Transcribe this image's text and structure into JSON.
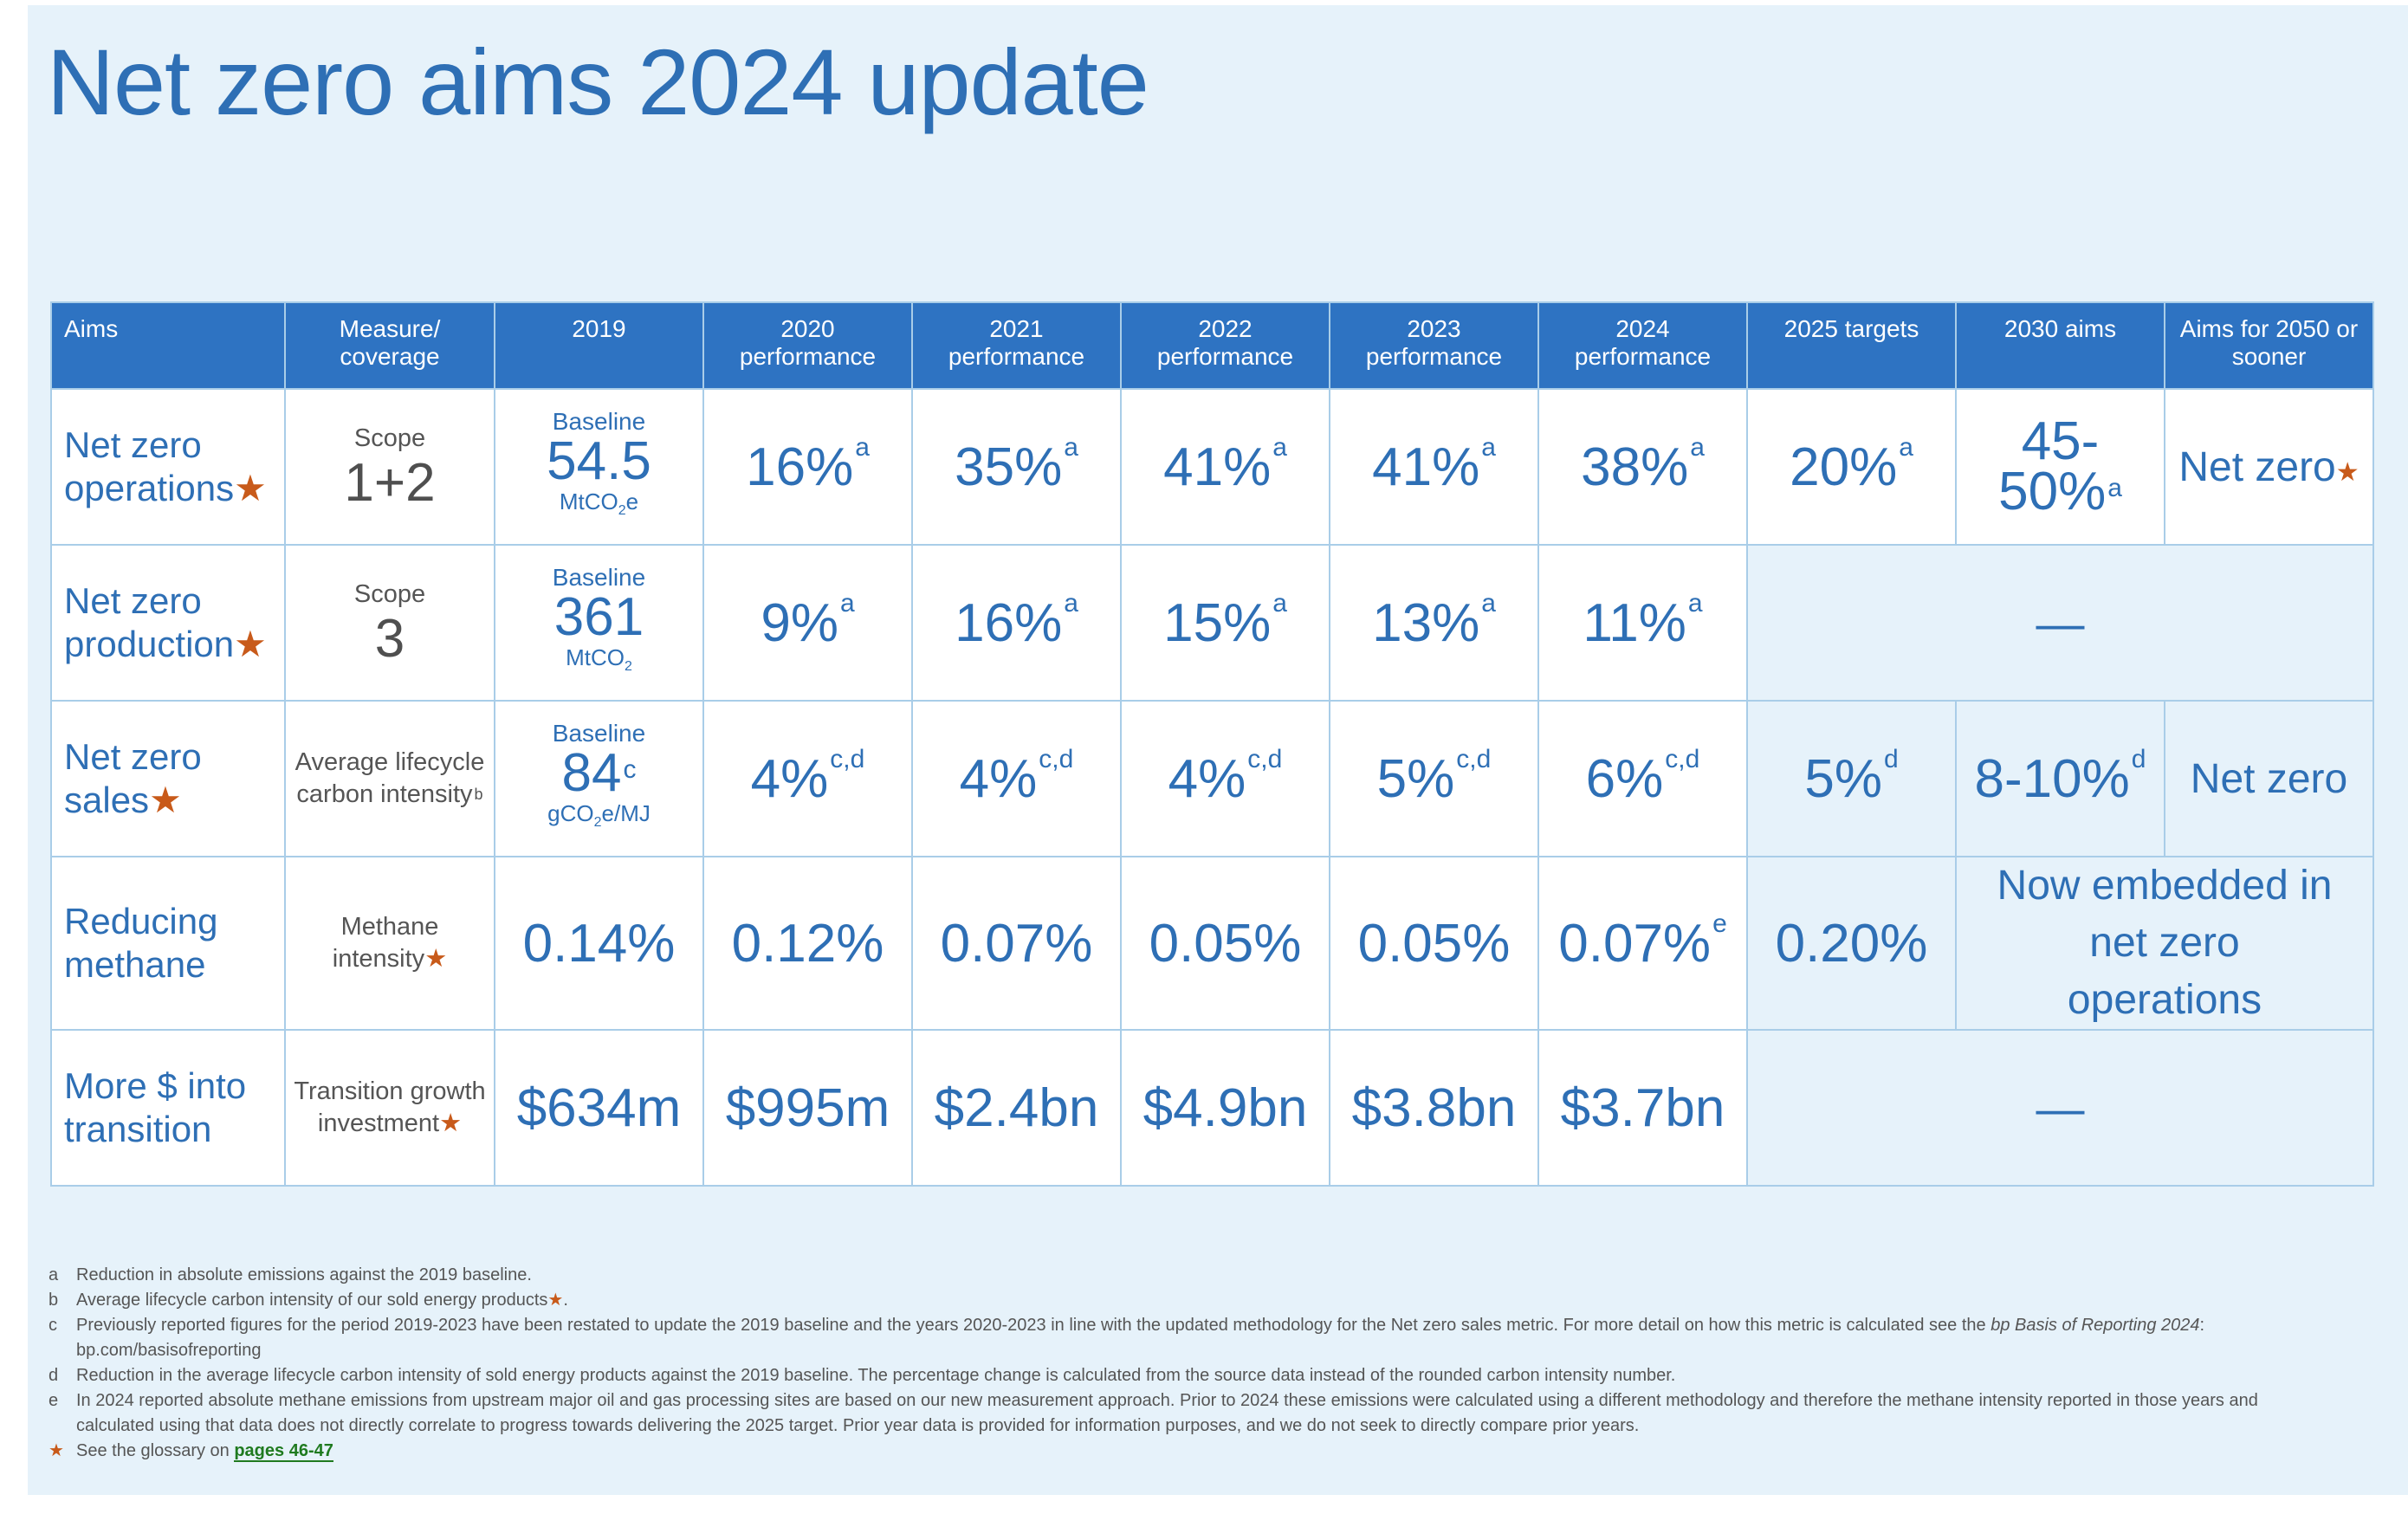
{
  "title": "Net zero aims 2024 update",
  "colors": {
    "accent": "#2e73c2",
    "text_blue": "#2e6fb5",
    "star": "#c85a1a",
    "panel": "#e6f2fa"
  },
  "headers": [
    "Aims",
    "Measure/ coverage",
    "2019",
    "2020 performance",
    "2021 performance",
    "2022 performance",
    "2023 performance",
    "2024 performance",
    "2025 targets",
    "2030 aims",
    "Aims for 2050 or sooner"
  ],
  "rows": {
    "operations": {
      "aim": "Net zero operations",
      "measure_label": "Scope",
      "measure_value": "1+2",
      "baseline_label": "Baseline",
      "baseline_value": "54.5",
      "baseline_unit_pre": "MtCO",
      "baseline_unit_sub": "2",
      "baseline_unit_post": "e",
      "v2020": "16%",
      "v2020_note": "a",
      "v2021": "35%",
      "v2021_note": "a",
      "v2022": "41%",
      "v2022_note": "a",
      "v2023": "41%",
      "v2023_note": "a",
      "v2024": "38%",
      "v2024_note": "a",
      "t2025": "20%",
      "t2025_note": "a",
      "a2030": "45- 50%",
      "a2030_note": "a",
      "a2050": "Net zero"
    },
    "production": {
      "aim": "Net zero production",
      "measure_label": "Scope",
      "measure_value": "3",
      "baseline_label": "Baseline",
      "baseline_value": "361",
      "baseline_unit_pre": "MtCO",
      "baseline_unit_sub": "2",
      "v2020": "9%",
      "v2020_note": "a",
      "v2021": "16%",
      "v2021_note": "a",
      "v2022": "15%",
      "v2022_note": "a",
      "v2023": "13%",
      "v2023_note": "a",
      "v2024": "11%",
      "v2024_note": "a",
      "future": "—"
    },
    "sales": {
      "aim": "Net zero sales",
      "measure": "Average lifecycle carbon intensity",
      "measure_note": "b",
      "baseline_label": "Baseline",
      "baseline_value": "84",
      "baseline_note": "c",
      "baseline_unit_pre": "gCO",
      "baseline_unit_sub": "2",
      "baseline_unit_post": "e/MJ",
      "v2020": "4%",
      "v2020_note": "c,d",
      "v2021": "4%",
      "v2021_note": "c,d",
      "v2022": "4%",
      "v2022_note": "c,d",
      "v2023": "5%",
      "v2023_note": "c,d",
      "v2024": "6%",
      "v2024_note": "c,d",
      "t2025": "5%",
      "t2025_note": "d",
      "a2030": "8-10%",
      "a2030_note": "d",
      "a2050": "Net zero"
    },
    "methane": {
      "aim": "Reducing methane",
      "measure": "Methane intensity",
      "v2019": "0.14%",
      "v2020": "0.12%",
      "v2021": "0.07%",
      "v2022": "0.05%",
      "v2023": "0.05%",
      "v2024": "0.07%",
      "v2024_note": "e",
      "t2025": "0.20%",
      "embedded": "Now embedded in net zero operations"
    },
    "investment": {
      "aim": "More $ into transition",
      "measure": "Transition growth investment",
      "v2019": "$634m",
      "v2020": "$995m",
      "v2021": "$2.4bn",
      "v2022": "$4.9bn",
      "v2023": "$3.8bn",
      "v2024": "$3.7bn",
      "future": "—"
    }
  },
  "star_glyph": "★",
  "footnotes": [
    {
      "key": "a",
      "text": "Reduction in absolute emissions against the 2019 baseline."
    },
    {
      "key": "b",
      "text": "Average lifecycle carbon intensity of our sold energy products"
    },
    {
      "key": "c",
      "text_pre": "Previously reported figures for the period 2019-2023 have been restated to update the 2019 baseline and the years 2020-2023 in line with the updated methodology for the Net zero sales metric. For more detail on how this metric is calculated see the ",
      "text_italic": "bp Basis of Reporting 2024",
      "text_post": ":",
      "text_line2": "bp.com/basisofreporting"
    },
    {
      "key": "d",
      "text": "Reduction in the average lifecycle carbon intensity of sold energy products against the 2019 baseline. The percentage change is calculated from the source data instead of the rounded carbon intensity number."
    },
    {
      "key": "e",
      "text": "In 2024 reported absolute methane emissions from upstream major oil and gas processing sites are based on our new measurement approach. Prior to 2024 these emissions were calculated using a different methodology and therefore the methane intensity reported in those years and calculated using that data does not directly correlate to progress towards delivering the 2025 target. Prior year data is provided for information purposes, and we do not seek to directly compare prior years."
    }
  ],
  "glossary": {
    "text": "See the glossary on ",
    "link": "pages 46-47"
  }
}
